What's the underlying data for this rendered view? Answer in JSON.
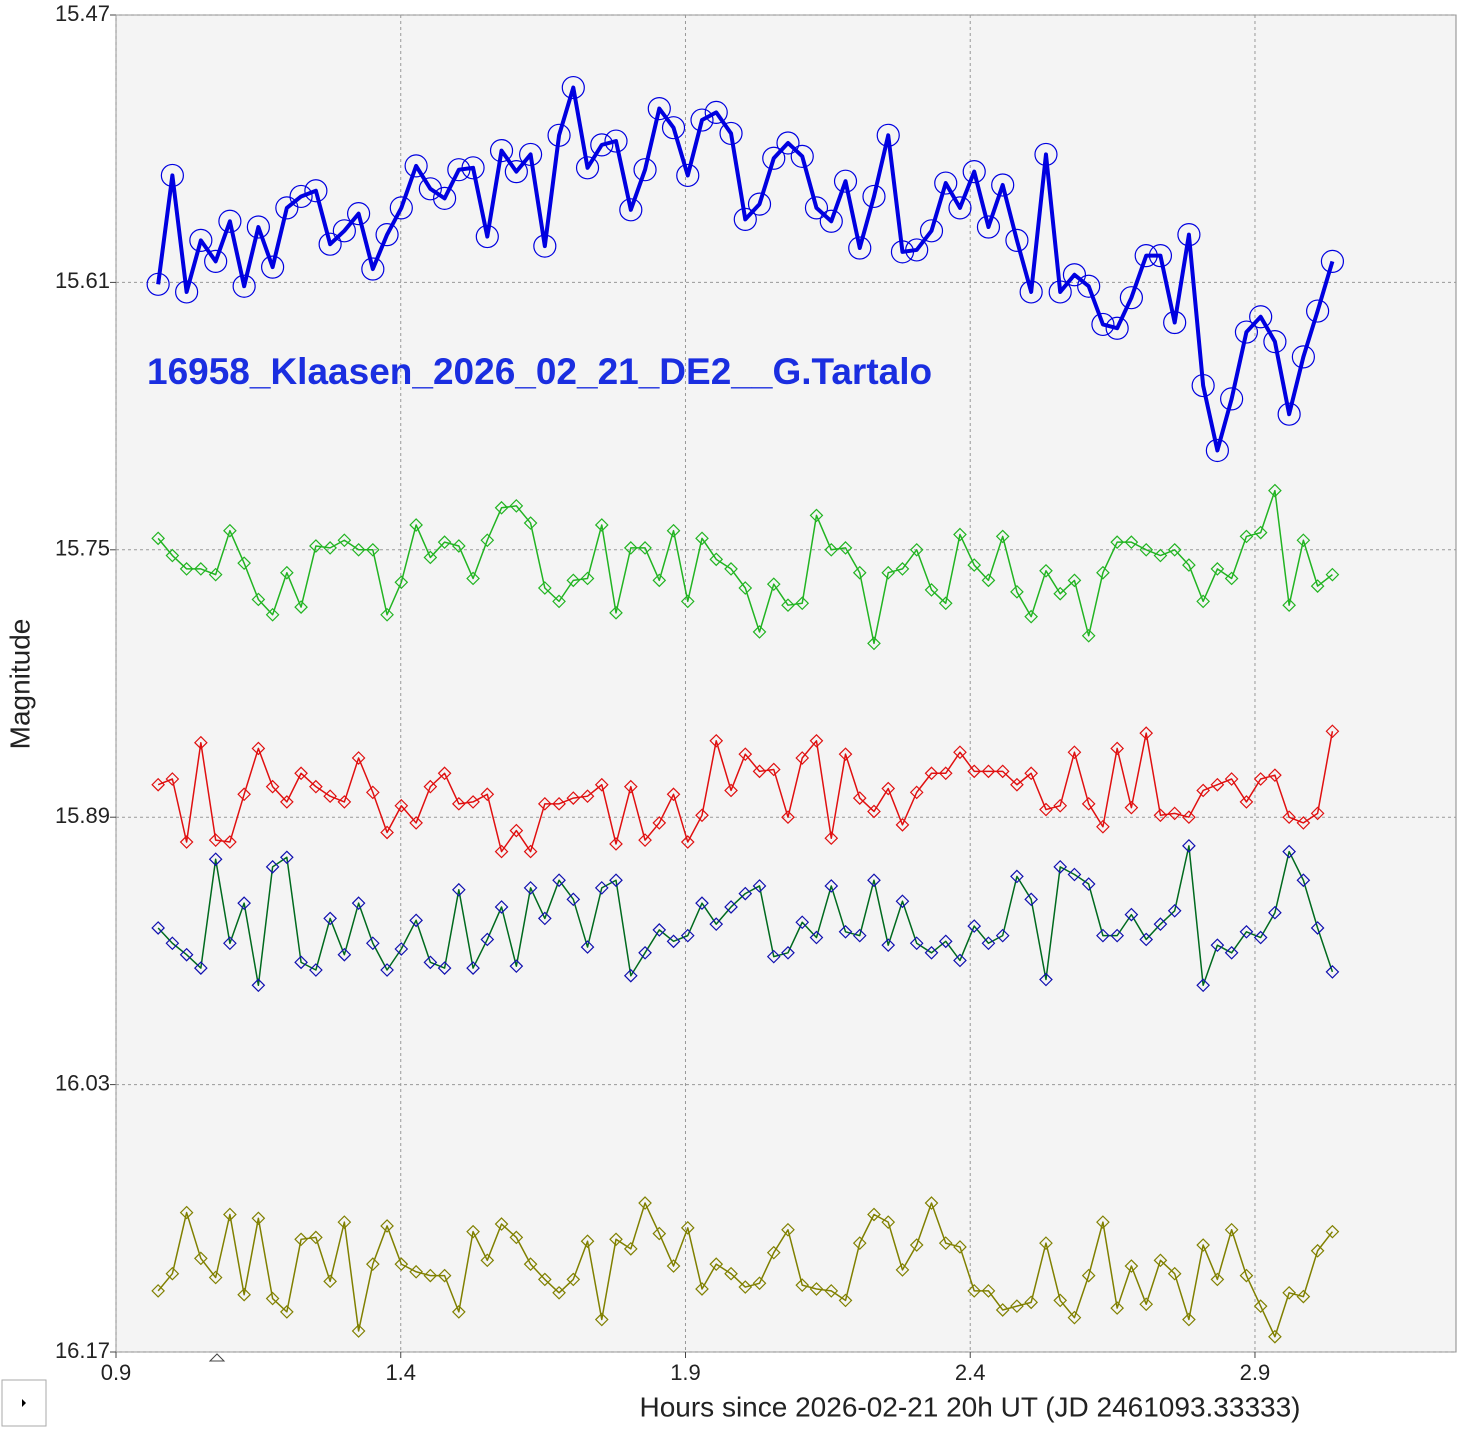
{
  "chart_data": {
    "type": "line",
    "annotation": "16958_Klaasen_2026_02_21_DE2__G.Tartalo",
    "xlabel": "Hours since 2026-02-21 20h UT (JD 2461093.33333)",
    "ylabel": "Magnitude",
    "xlim": [
      0.9,
      3.253
    ],
    "xticks": [
      0.9,
      1.4,
      1.9,
      2.4,
      2.9
    ],
    "ylim": [
      15.47,
      16.17
    ],
    "yticks": [
      15.47,
      15.61,
      15.75,
      15.89,
      16.03,
      16.17
    ],
    "y_inverted": true,
    "grid": true,
    "x": [
      0.974,
      0.999,
      1.024,
      1.049,
      1.075,
      1.1,
      1.125,
      1.15,
      1.175,
      1.2,
      1.225,
      1.251,
      1.276,
      1.301,
      1.326,
      1.351,
      1.376,
      1.401,
      1.427,
      1.452,
      1.477,
      1.502,
      1.527,
      1.552,
      1.577,
      1.603,
      1.628,
      1.653,
      1.678,
      1.703,
      1.728,
      1.753,
      1.778,
      1.804,
      1.829,
      1.854,
      1.879,
      1.904,
      1.929,
      1.954,
      1.98,
      2.005,
      2.03,
      2.055,
      2.08,
      2.105,
      2.13,
      2.156,
      2.181,
      2.206,
      2.231,
      2.256,
      2.281,
      2.306,
      2.332,
      2.357,
      2.382,
      2.407,
      2.432,
      2.457,
      2.482,
      2.507,
      2.533,
      2.558,
      2.583,
      2.608,
      2.633,
      2.658,
      2.683,
      2.709,
      2.734,
      2.759,
      2.784,
      2.809,
      2.834,
      2.859,
      2.885,
      2.91,
      2.935,
      2.96,
      2.985,
      3.01,
      3.036
    ],
    "series": [
      {
        "color": "#0000e0",
        "marker_color": "#0000e0",
        "marker": "circle",
        "line_width": 4,
        "values": [
          15.611,
          15.554,
          15.615,
          15.588,
          15.599,
          15.578,
          15.612,
          15.581,
          15.602,
          15.571,
          15.565,
          15.562,
          15.59,
          15.583,
          15.574,
          15.603,
          15.585,
          15.571,
          15.549,
          15.561,
          15.566,
          15.551,
          15.55,
          15.586,
          15.541,
          15.552,
          15.543,
          15.591,
          15.533,
          15.508,
          15.55,
          15.538,
          15.536,
          15.572,
          15.551,
          15.519,
          15.529,
          15.554,
          15.525,
          15.521,
          15.532,
          15.577,
          15.569,
          15.545,
          15.537,
          15.544,
          15.571,
          15.578,
          15.557,
          15.592,
          15.565,
          15.533,
          15.594,
          15.593,
          15.583,
          15.558,
          15.571,
          15.552,
          15.581,
          15.559,
          15.588,
          15.615,
          15.543,
          15.615,
          15.606,
          15.612,
          15.632,
          15.634,
          15.618,
          15.596,
          15.596,
          15.631,
          15.585,
          15.664,
          15.698,
          15.671,
          15.636,
          15.628,
          15.641,
          15.679,
          15.649,
          15.625,
          15.599
        ]
      },
      {
        "color": "#22b422",
        "marker_color": "#22b422",
        "marker": "diamond",
        "line_width": 1.5,
        "values": [
          15.744,
          15.753,
          15.76,
          15.76,
          15.763,
          15.74,
          15.757,
          15.776,
          15.784,
          15.762,
          15.78,
          15.748,
          15.749,
          15.745,
          15.75,
          15.75,
          15.784,
          15.767,
          15.737,
          15.754,
          15.746,
          15.748,
          15.765,
          15.745,
          15.728,
          15.727,
          15.736,
          15.77,
          15.777,
          15.766,
          15.765,
          15.737,
          15.783,
          15.749,
          15.749,
          15.766,
          15.74,
          15.777,
          15.744,
          15.755,
          15.76,
          15.77,
          15.793,
          15.768,
          15.779,
          15.778,
          15.732,
          15.75,
          15.749,
          15.762,
          15.799,
          15.762,
          15.76,
          15.75,
          15.771,
          15.778,
          15.742,
          15.758,
          15.766,
          15.743,
          15.772,
          15.785,
          15.761,
          15.773,
          15.766,
          15.795,
          15.762,
          15.746,
          15.746,
          15.75,
          15.753,
          15.75,
          15.758,
          15.777,
          15.76,
          15.765,
          15.743,
          15.741,
          15.719,
          15.779,
          15.745,
          15.769,
          15.763
        ]
      },
      {
        "color": "#e01010",
        "marker_color": "#e01010",
        "marker": "diamond",
        "line_width": 1.5,
        "values": [
          15.873,
          15.87,
          15.903,
          15.851,
          15.902,
          15.903,
          15.878,
          15.854,
          15.874,
          15.882,
          15.867,
          15.874,
          15.879,
          15.882,
          15.859,
          15.877,
          15.898,
          15.884,
          15.893,
          15.874,
          15.867,
          15.883,
          15.882,
          15.878,
          15.908,
          15.897,
          15.908,
          15.883,
          15.883,
          15.88,
          15.879,
          15.873,
          15.904,
          15.874,
          15.902,
          15.893,
          15.878,
          15.903,
          15.889,
          15.85,
          15.876,
          15.857,
          15.866,
          15.865,
          15.89,
          15.859,
          15.85,
          15.901,
          15.857,
          15.88,
          15.887,
          15.875,
          15.894,
          15.877,
          15.867,
          15.867,
          15.856,
          15.866,
          15.866,
          15.866,
          15.873,
          15.867,
          15.886,
          15.884,
          15.856,
          15.883,
          15.895,
          15.854,
          15.885,
          15.846,
          15.889,
          15.888,
          15.89,
          15.876,
          15.873,
          15.87,
          15.882,
          15.87,
          15.868,
          15.89,
          15.893,
          15.888,
          15.845
        ]
      },
      {
        "color": "#006a1e",
        "marker_color": "#1010b0",
        "marker": "diamond",
        "line_width": 1.5,
        "values": [
          15.948,
          15.956,
          15.962,
          15.969,
          15.912,
          15.956,
          15.935,
          15.978,
          15.916,
          15.911,
          15.966,
          15.97,
          15.943,
          15.962,
          15.935,
          15.956,
          15.97,
          15.959,
          15.944,
          15.966,
          15.969,
          15.928,
          15.969,
          15.954,
          15.937,
          15.968,
          15.927,
          15.943,
          15.923,
          15.933,
          15.958,
          15.927,
          15.923,
          15.973,
          15.961,
          15.949,
          15.955,
          15.952,
          15.935,
          15.946,
          15.937,
          15.93,
          15.926,
          15.963,
          15.961,
          15.945,
          15.953,
          15.926,
          15.95,
          15.952,
          15.923,
          15.957,
          15.934,
          15.956,
          15.961,
          15.955,
          15.965,
          15.947,
          15.956,
          15.952,
          15.921,
          15.933,
          15.975,
          15.916,
          15.92,
          15.925,
          15.952,
          15.952,
          15.941,
          15.954,
          15.946,
          15.939,
          15.905,
          15.978,
          15.957,
          15.961,
          15.95,
          15.953,
          15.94,
          15.908,
          15.923,
          15.948,
          15.971
        ]
      },
      {
        "color": "#808000",
        "marker_color": "#808000",
        "marker": "diamond",
        "line_width": 1.5,
        "values": [
          16.138,
          16.129,
          16.097,
          16.121,
          16.131,
          16.098,
          16.14,
          16.1,
          16.142,
          16.149,
          16.111,
          16.11,
          16.133,
          16.102,
          16.159,
          16.124,
          16.104,
          16.124,
          16.128,
          16.13,
          16.13,
          16.149,
          16.107,
          16.122,
          16.103,
          16.11,
          16.124,
          16.132,
          16.139,
          16.132,
          16.112,
          16.153,
          16.111,
          16.116,
          16.092,
          16.108,
          16.125,
          16.105,
          16.137,
          16.124,
          16.129,
          16.136,
          16.134,
          16.118,
          16.106,
          16.135,
          16.137,
          16.138,
          16.143,
          16.113,
          16.098,
          16.102,
          16.127,
          16.114,
          16.092,
          16.113,
          16.115,
          16.138,
          16.138,
          16.148,
          16.146,
          16.144,
          16.113,
          16.143,
          16.152,
          16.13,
          16.102,
          16.147,
          16.125,
          16.145,
          16.122,
          16.129,
          16.153,
          16.114,
          16.132,
          16.106,
          16.13,
          16.146,
          16.162,
          16.139,
          16.141,
          16.117,
          16.107
        ]
      }
    ]
  }
}
